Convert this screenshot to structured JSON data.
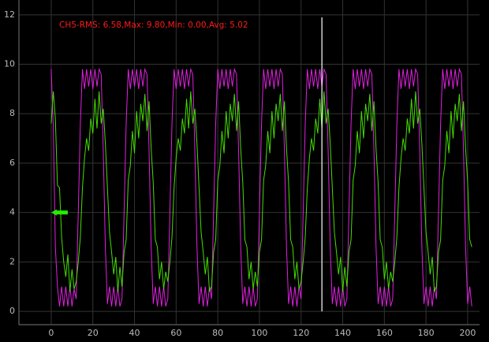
{
  "chart_data": {
    "type": "line",
    "annotation": "CH5-RMS: 6.58,Max: 9.80,Min: 0.00,Avg: 5.02",
    "annotation_color": "#ff1a1a",
    "cursor_x": 130,
    "cursor_color": "#ffffff",
    "marker_y": 4,
    "marker_color": "#22ee00",
    "xlim": [
      -15.5,
      205.7
    ],
    "ylim": [
      -0.54,
      12.6
    ],
    "xticks": [
      0,
      20,
      40,
      60,
      80,
      100,
      120,
      140,
      160,
      180,
      200
    ],
    "yticks": [
      0,
      2,
      4,
      6,
      8,
      10,
      12
    ],
    "grid": true,
    "x": [
      0,
      1,
      2,
      3,
      4,
      5,
      6,
      7,
      8,
      9,
      10,
      11,
      12,
      13,
      14,
      15,
      16,
      17,
      18,
      19,
      20,
      21,
      22,
      23,
      24,
      25,
      26,
      27,
      28,
      29,
      30,
      31,
      32,
      33,
      34,
      35,
      36,
      37,
      38,
      39,
      40,
      41,
      42,
      43,
      44,
      45,
      46,
      47,
      48,
      49,
      50,
      51,
      52,
      53,
      54,
      55,
      56,
      57,
      58,
      59,
      60,
      61,
      62,
      63,
      64,
      65,
      66,
      67,
      68,
      69,
      70,
      71,
      72,
      73,
      74,
      75,
      76,
      77,
      78,
      79,
      80,
      81,
      82,
      83,
      84,
      85,
      86,
      87,
      88,
      89,
      90,
      91,
      92,
      93,
      94,
      95,
      96,
      97,
      98,
      99,
      100,
      101,
      102,
      103,
      104,
      105,
      106,
      107,
      108,
      109,
      110,
      111,
      112,
      113,
      114,
      115,
      116,
      117,
      118,
      119,
      120,
      121,
      122,
      123,
      124,
      125,
      126,
      127,
      128,
      129,
      130,
      131,
      132,
      133,
      134,
      135,
      136,
      137,
      138,
      139,
      140,
      141,
      142,
      143,
      144,
      145,
      146,
      147,
      148,
      149,
      150,
      151,
      152,
      153,
      154,
      155,
      156,
      157,
      158,
      159,
      160,
      161,
      162,
      163,
      164,
      165,
      166,
      167,
      168,
      169,
      170,
      171,
      172,
      173,
      174,
      175,
      176,
      177,
      178,
      179,
      180,
      181,
      182,
      183,
      184,
      185,
      186,
      187,
      188,
      189,
      190,
      191,
      192,
      193,
      194,
      195,
      196,
      197,
      198,
      199,
      200,
      201,
      202
    ],
    "series": [
      {
        "color": "#e020e0",
        "values": [
          9.8,
          7.5,
          2.6,
          1.0,
          0.2,
          1.0,
          0.2,
          1.0,
          0.2,
          1.0,
          0.2,
          0.9,
          0.5,
          4.0,
          7.6,
          9.8,
          9.0,
          9.8,
          9.1,
          9.8,
          9.0,
          9.8,
          9.1,
          9.8,
          9.6,
          6.5,
          2.6,
          0.3,
          1.0,
          0.2,
          1.0,
          0.2,
          1.0,
          0.2,
          0.5,
          4.0,
          7.6,
          9.8,
          9.0,
          9.8,
          9.1,
          9.8,
          9.0,
          9.8,
          9.1,
          9.8,
          9.6,
          6.5,
          2.6,
          0.3,
          1.0,
          0.2,
          1.0,
          0.2,
          1.0,
          0.2,
          0.5,
          4.0,
          7.6,
          9.8,
          9.0,
          9.8,
          9.1,
          9.8,
          9.0,
          9.8,
          9.1,
          9.8,
          9.6,
          6.5,
          2.6,
          0.3,
          1.0,
          0.2,
          1.0,
          0.2,
          1.0,
          0.5,
          4.0,
          7.6,
          9.8,
          9.0,
          9.8,
          9.1,
          9.8,
          9.0,
          9.8,
          9.1,
          9.8,
          9.6,
          6.5,
          2.6,
          0.3,
          1.0,
          0.2,
          1.0,
          0.2,
          1.0,
          0.2,
          0.5,
          4.0,
          7.6,
          9.8,
          9.0,
          9.8,
          9.1,
          9.8,
          9.0,
          9.8,
          9.1,
          9.8,
          9.6,
          6.5,
          2.6,
          0.3,
          1.0,
          0.2,
          1.0,
          0.2,
          1.0,
          0.5,
          4.0,
          7.6,
          9.8,
          9.0,
          9.8,
          9.1,
          9.8,
          9.0,
          9.8,
          9.1,
          9.8,
          9.6,
          6.5,
          2.6,
          0.3,
          1.0,
          0.2,
          1.0,
          0.2,
          1.0,
          0.2,
          0.5,
          4.0,
          7.6,
          9.8,
          9.0,
          9.8,
          9.1,
          9.8,
          9.0,
          9.8,
          9.1,
          9.8,
          9.6,
          6.5,
          2.6,
          0.3,
          1.0,
          0.2,
          1.0,
          0.2,
          1.0,
          0.2,
          0.5,
          4.0,
          7.6,
          9.8,
          9.0,
          9.8,
          9.1,
          9.8,
          9.0,
          9.8,
          9.1,
          9.8,
          9.6,
          6.5,
          2.6,
          0.3,
          1.0,
          0.2,
          1.0,
          0.2,
          1.0,
          0.5,
          4.0,
          7.6,
          9.8,
          9.0,
          9.8,
          9.1,
          9.8,
          9.0,
          9.8,
          9.1,
          9.8,
          9.6,
          6.5,
          2.6,
          0.3,
          1.0,
          0.2
        ]
      },
      {
        "color": "#44dd00",
        "values": [
          7.6,
          8.9,
          7.8,
          5.1,
          5.0,
          3.0,
          2.0,
          1.4,
          2.3,
          0.8,
          1.7,
          0.9,
          1.2,
          2.0,
          3.0,
          5.0,
          6.2,
          7.0,
          6.5,
          7.8,
          7.2,
          8.6,
          7.4,
          8.9,
          7.6,
          8.2,
          6.8,
          5.0,
          3.2,
          2.4,
          1.5,
          2.2,
          0.8,
          1.8,
          1.0,
          2.4,
          2.9,
          5.3,
          5.9,
          7.3,
          6.4,
          8.1,
          7.0,
          8.4,
          7.7,
          8.8,
          7.3,
          8.5,
          6.6,
          5.2,
          2.9,
          2.6,
          1.3,
          2.0,
          0.9,
          1.6,
          1.2,
          2.0,
          3.0,
          5.0,
          6.2,
          7.0,
          6.5,
          7.8,
          7.2,
          8.6,
          7.4,
          8.9,
          7.6,
          8.2,
          6.8,
          5.0,
          3.2,
          2.4,
          1.5,
          2.2,
          0.8,
          1.0,
          2.4,
          2.9,
          5.3,
          5.9,
          7.3,
          6.4,
          8.1,
          7.0,
          8.4,
          7.7,
          8.8,
          7.3,
          8.5,
          6.6,
          5.2,
          2.9,
          2.6,
          1.3,
          2.0,
          0.9,
          1.6,
          1.0,
          2.4,
          2.9,
          5.3,
          5.9,
          7.3,
          6.4,
          8.1,
          7.0,
          8.4,
          7.7,
          8.8,
          7.3,
          8.5,
          6.6,
          5.2,
          2.9,
          2.6,
          1.3,
          2.0,
          0.9,
          1.2,
          2.0,
          3.0,
          5.0,
          6.2,
          7.0,
          6.5,
          7.8,
          7.2,
          8.6,
          7.4,
          8.9,
          7.6,
          8.2,
          6.8,
          5.0,
          3.2,
          2.4,
          1.5,
          2.2,
          0.8,
          1.8,
          1.0,
          2.4,
          2.9,
          5.3,
          5.9,
          7.3,
          6.4,
          8.1,
          7.0,
          8.4,
          7.7,
          8.8,
          7.3,
          8.5,
          6.6,
          5.2,
          2.9,
          2.6,
          1.3,
          2.0,
          0.9,
          1.6,
          1.2,
          2.0,
          3.0,
          5.0,
          6.2,
          7.0,
          6.5,
          7.8,
          7.2,
          8.6,
          7.4,
          8.9,
          7.6,
          8.2,
          6.8,
          5.0,
          3.2,
          2.4,
          1.5,
          2.2,
          0.8,
          1.0,
          2.4,
          2.9,
          5.3,
          5.9,
          7.3,
          6.4,
          8.1,
          7.0,
          8.4,
          7.7,
          8.8,
          7.3,
          8.5,
          6.6,
          5.2,
          2.9,
          2.6
        ]
      }
    ]
  }
}
